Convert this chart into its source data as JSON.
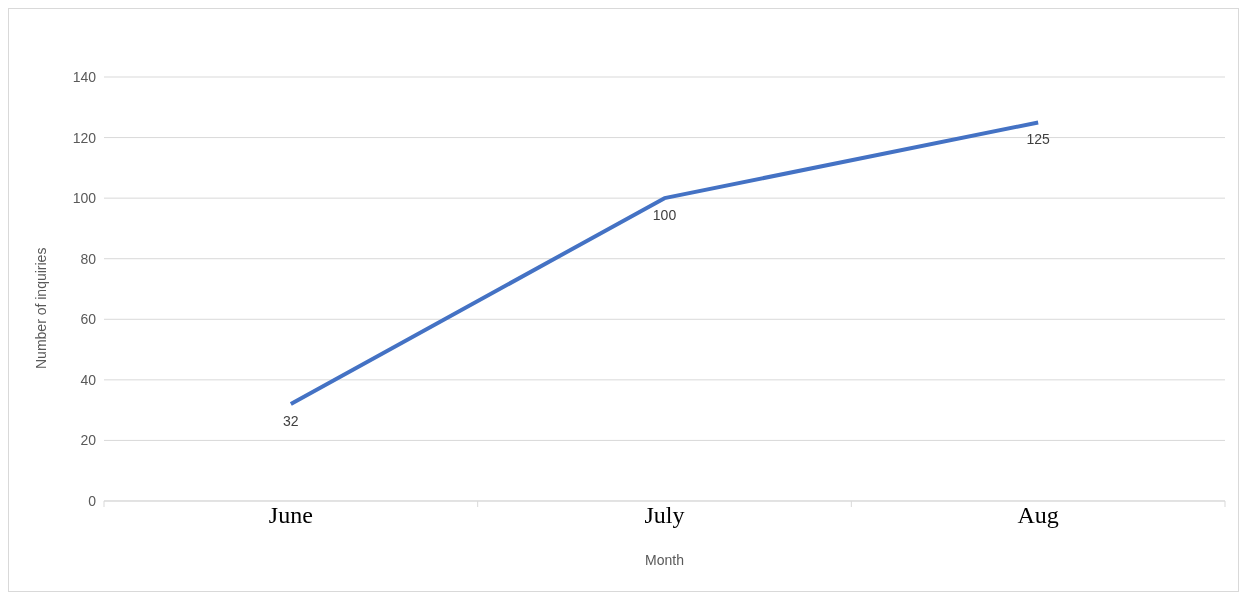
{
  "chart_data": {
    "type": "line",
    "xlabel": "Month",
    "ylabel": "Number of inquiries",
    "categories": [
      "June",
      "July",
      "Aug"
    ],
    "series": [
      {
        "color": "#4472c4",
        "values": [
          32,
          100,
          125
        ]
      }
    ],
    "ylim": [
      0,
      140
    ],
    "yticks": [
      0,
      20,
      40,
      60,
      80,
      100,
      120,
      140
    ],
    "grid": "y",
    "data_labels": true,
    "legend": false,
    "marker": "none"
  }
}
